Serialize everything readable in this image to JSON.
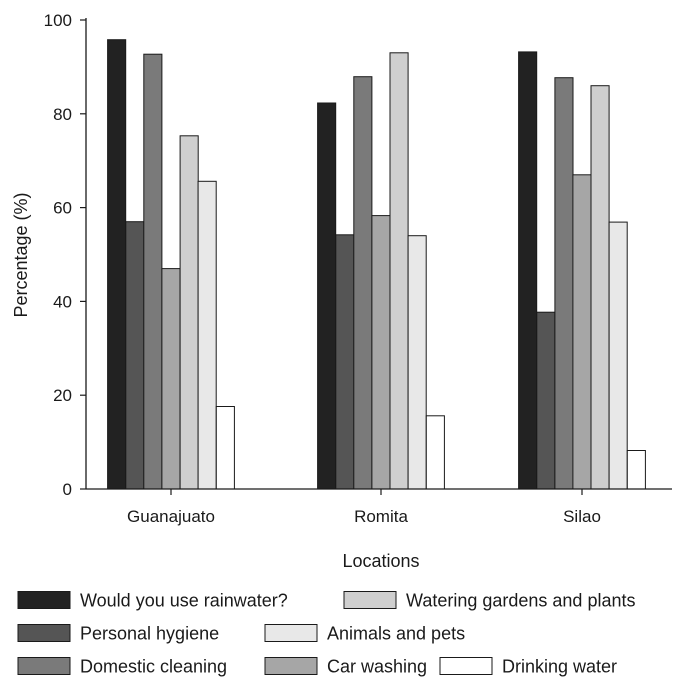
{
  "chart_data": {
    "type": "bar",
    "title": "",
    "xlabel": "Locations",
    "ylabel": "Percentage (%)",
    "ylim": [
      0,
      100
    ],
    "yticks": [
      0,
      20,
      40,
      60,
      80,
      100
    ],
    "grid": false,
    "legend_position": "bottom",
    "categories": [
      "Guanajuato",
      "Romita",
      "Silao"
    ],
    "series": [
      {
        "name": "Would you use rainwater?",
        "color": "#222222",
        "values": [
          95.8,
          82.3,
          93.2
        ]
      },
      {
        "name": "Personal hygiene",
        "color": "#555555",
        "values": [
          57.0,
          54.2,
          37.7
        ]
      },
      {
        "name": "Domestic cleaning",
        "color": "#7a7a7a",
        "values": [
          92.7,
          87.9,
          87.7
        ]
      },
      {
        "name": "Car washing",
        "color": "#a6a6a6",
        "values": [
          47.0,
          58.3,
          67.0
        ]
      },
      {
        "name": "Watering gardens and plants",
        "color": "#cfcfcf",
        "values": [
          75.3,
          93.0,
          86.0
        ]
      },
      {
        "name": "Animals and pets",
        "color": "#e8e8e8",
        "values": [
          65.6,
          54.0,
          56.9
        ]
      },
      {
        "name": "Drinking water",
        "color": "#ffffff",
        "values": [
          17.6,
          15.6,
          8.2
        ]
      }
    ],
    "legend_order": [
      "Would you use rainwater?",
      "Watering gardens and plants",
      "Personal hygiene",
      "Animals and pets",
      "Domestic cleaning",
      "Car washing",
      "Drinking water"
    ]
  }
}
